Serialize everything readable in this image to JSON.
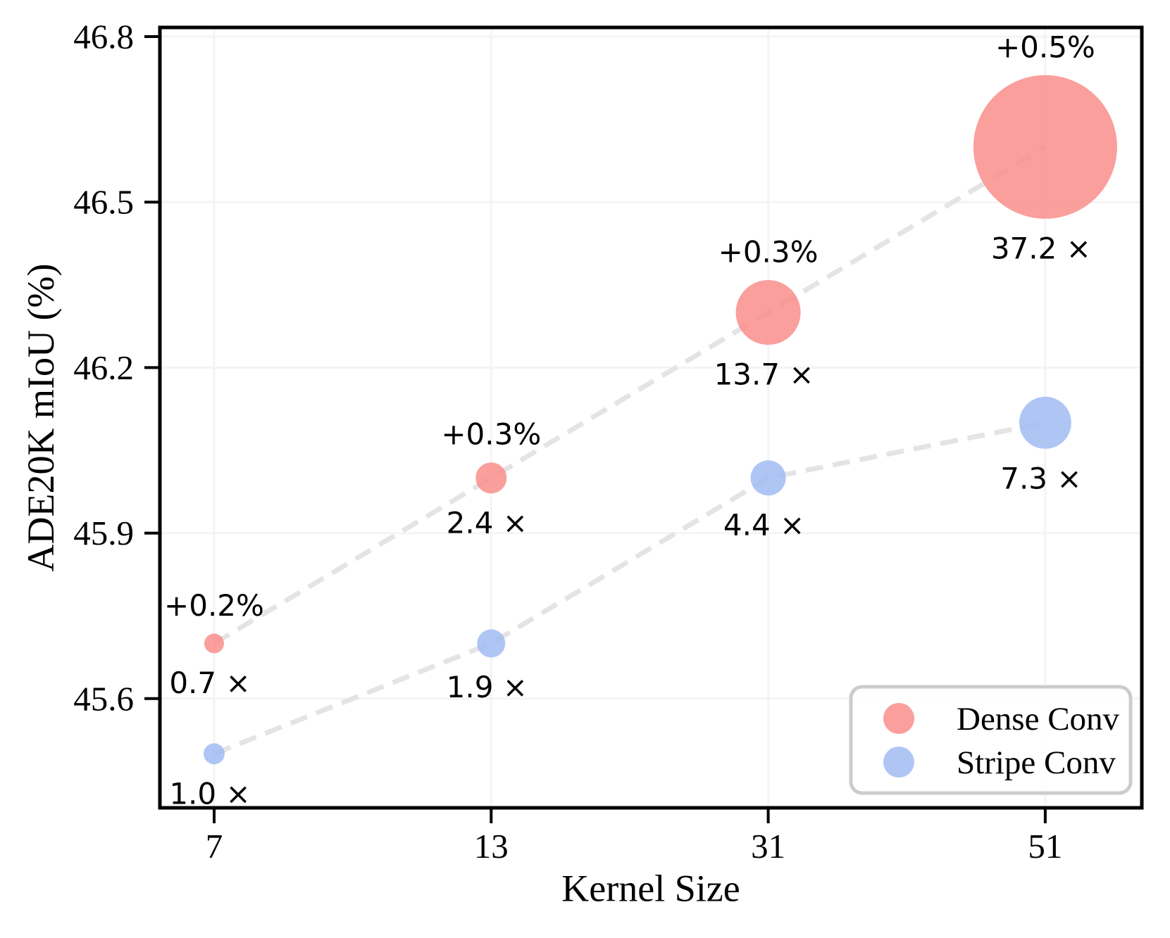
{
  "chart_data": {
    "type": "scatter",
    "subtype": "bubble",
    "title": "",
    "xlabel": "Kernel Size",
    "ylabel": "ADE20K mIoU (%)",
    "x_categories": [
      "7",
      "13",
      "31",
      "51"
    ],
    "yticks": [
      "45.6",
      "45.9",
      "46.2",
      "46.5",
      "46.8"
    ],
    "ytick_values": [
      45.6,
      45.9,
      46.2,
      46.5,
      46.8
    ],
    "ylim": [
      45.4,
      46.82
    ],
    "grid": true,
    "legend_position": "lower right",
    "series": [
      {
        "name": "Dense Conv",
        "color": "#F98E8B",
        "values": [
          45.7,
          46.0,
          46.3,
          46.6
        ],
        "gain_labels": [
          "+0.2%",
          "+0.3%",
          "+0.3%",
          "+0.5%"
        ],
        "cost_labels": [
          "0.7 ×",
          "2.4 ×",
          "13.7 ×",
          "37.2 ×"
        ],
        "bubble_px_radius": [
          14,
          22,
          46,
          102
        ]
      },
      {
        "name": "Stripe Conv",
        "color": "#A1BCF3",
        "values": [
          45.5,
          45.7,
          46.0,
          46.1
        ],
        "gain_labels": [
          "",
          "",
          "",
          ""
        ],
        "cost_labels": [
          "1.0 ×",
          "1.9 ×",
          "4.4 ×",
          "7.3 ×"
        ],
        "bubble_px_radius": [
          15,
          20,
          25,
          37
        ]
      }
    ],
    "legend": [
      "Dense Conv",
      "Stripe Conv"
    ],
    "style": {
      "grid_color": "#F4F4F4",
      "trend_line_color": "#E4E4E4",
      "axis_color": "#000000",
      "text_color": "#000000",
      "legend_border_color": "#CCCCCC",
      "background": "#FFFFFF",
      "bubble_opacity": 0.85
    }
  }
}
